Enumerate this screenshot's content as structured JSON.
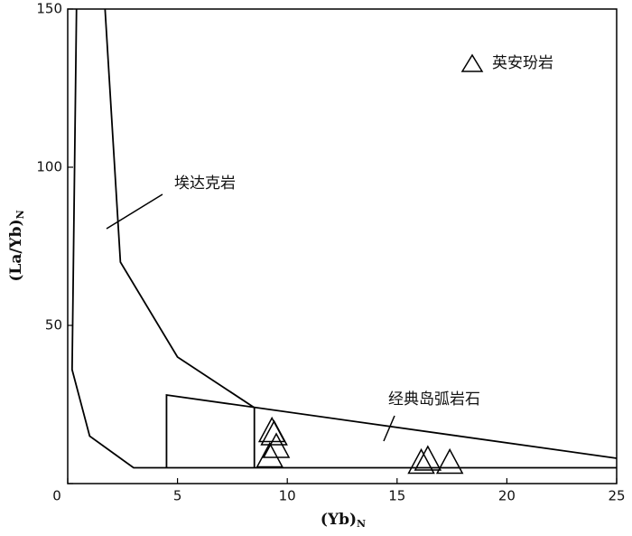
{
  "chart_data": {
    "type": "scatter",
    "x_label": {
      "text": "(Yb)",
      "subscript": "N"
    },
    "y_label": {
      "text": "(La/Yb)",
      "subscript": "N"
    },
    "xlim": [
      0,
      25
    ],
    "ylim": [
      0,
      150
    ],
    "xticks": [
      0,
      5,
      10,
      15,
      20,
      25
    ],
    "yticks": [
      0,
      50,
      100,
      150
    ],
    "lines": [
      {
        "x": [
          0.4,
          0.2,
          1,
          3,
          25
        ],
        "y": [
          150,
          36,
          15,
          5,
          5
        ]
      },
      {
        "x": [
          1.7,
          2.4,
          5,
          8.5
        ],
        "y": [
          150,
          70,
          40,
          24
        ]
      },
      {
        "x": [
          4.5,
          4.5,
          25
        ],
        "y": [
          5,
          28,
          8
        ]
      },
      {
        "x": [
          8.5,
          8.5
        ],
        "y": [
          24,
          5
        ]
      }
    ],
    "annotations": [
      "埃达克岩",
      "经典岛弧岩石"
    ],
    "series": [
      {
        "name": "英安玢岩",
        "marker": "triangle",
        "color": "#000000",
        "x": [
          9.3,
          9.4,
          9.5,
          9.2,
          16.1,
          16.4,
          17.4
        ],
        "y": [
          17,
          16,
          12,
          9,
          7,
          8,
          7
        ]
      }
    ],
    "legend": "upper right"
  }
}
